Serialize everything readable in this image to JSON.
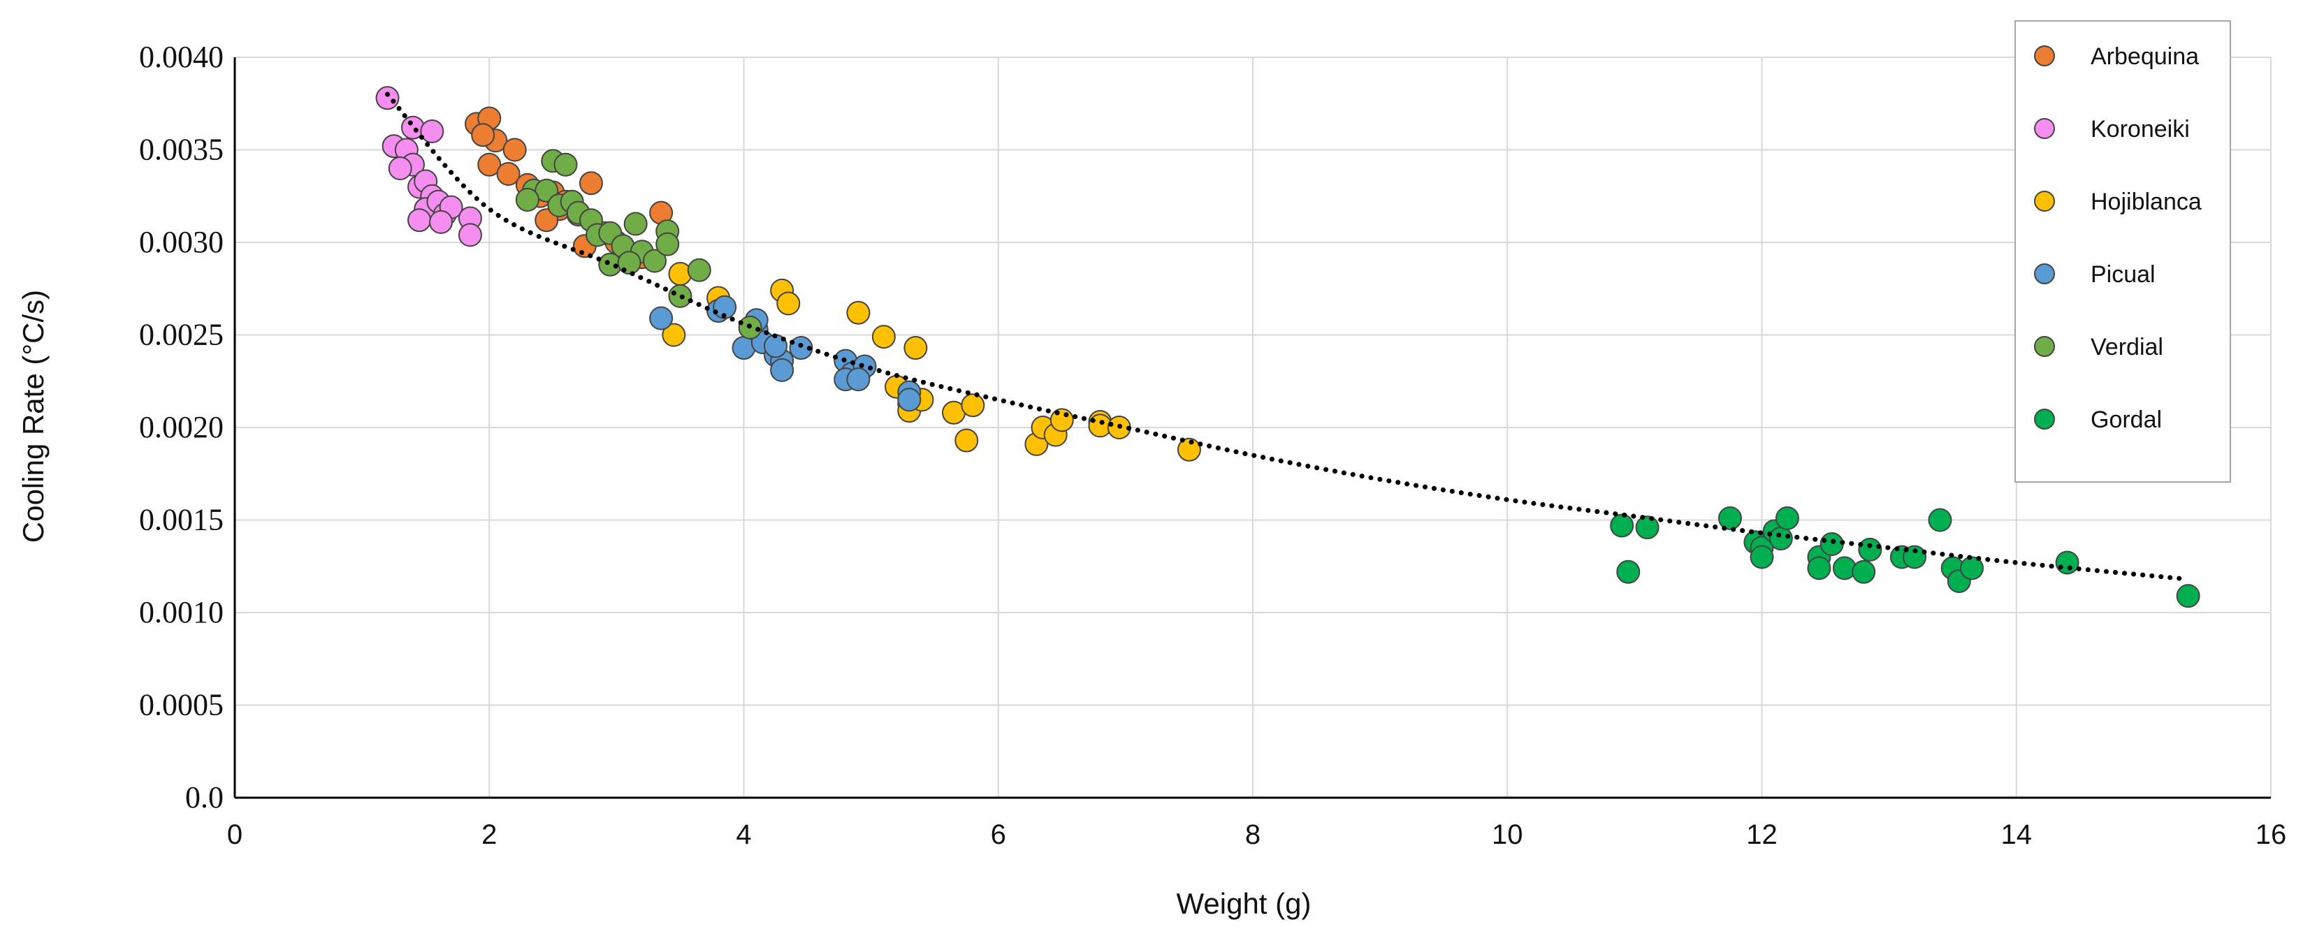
{
  "chart_data": {
    "type": "scatter",
    "title": "",
    "xlabel": "Weight (g)",
    "ylabel": "Cooling Rate (°C/s)",
    "xlim": [
      0,
      16
    ],
    "ylim": [
      0,
      0.004
    ],
    "x_ticks": [
      0,
      2,
      4,
      6,
      8,
      10,
      12,
      14,
      16
    ],
    "x_tick_labels": [
      "0",
      "2",
      "4",
      "6",
      "8",
      "10",
      "12",
      "14",
      "16"
    ],
    "y_ticks": [
      0,
      0.0005,
      0.001,
      0.0015,
      0.002,
      0.0025,
      0.003,
      0.0035,
      0.004
    ],
    "y_tick_labels": [
      "0.0",
      "0.0005",
      "0.0010",
      "0.0015",
      "0.0020",
      "0.0025",
      "0.0030",
      "0.0035",
      "0.0040"
    ],
    "grid": true,
    "legend_position": "top-right",
    "trendline": {
      "style": "dotted",
      "color": "#000000",
      "points": [
        [
          1.2,
          0.0038
        ],
        [
          2,
          0.00318
        ],
        [
          3,
          0.00287
        ],
        [
          4,
          0.00256
        ],
        [
          5,
          0.00232
        ],
        [
          6,
          0.00215
        ],
        [
          7,
          0.002
        ],
        [
          8,
          0.00185
        ],
        [
          9,
          0.00172
        ],
        [
          10,
          0.00161
        ],
        [
          11,
          0.00152
        ],
        [
          12,
          0.00143
        ],
        [
          13,
          0.00135
        ],
        [
          14,
          0.00127
        ],
        [
          15.35,
          0.00118
        ]
      ]
    },
    "series": [
      {
        "name": "Arbequina",
        "color": "#ED7D31",
        "points": [
          [
            1.9,
            0.00364
          ],
          [
            2.0,
            0.00367
          ],
          [
            2.05,
            0.00355
          ],
          [
            1.95,
            0.00358
          ],
          [
            2.0,
            0.00342
          ],
          [
            2.2,
            0.0035
          ],
          [
            2.15,
            0.00337
          ],
          [
            2.3,
            0.00331
          ],
          [
            2.4,
            0.00325
          ],
          [
            2.5,
            0.00327
          ],
          [
            2.55,
            0.00318
          ],
          [
            2.6,
            0.00322
          ],
          [
            2.7,
            0.00315
          ],
          [
            2.8,
            0.00332
          ],
          [
            2.9,
            0.00305
          ],
          [
            3.0,
            0.003
          ],
          [
            3.2,
            0.00292
          ],
          [
            3.35,
            0.00316
          ],
          [
            2.45,
            0.00312
          ],
          [
            2.75,
            0.00298
          ]
        ]
      },
      {
        "name": "Koroneiki",
        "color": "#F58EF0",
        "points": [
          [
            1.2,
            0.00378
          ],
          [
            1.4,
            0.00362
          ],
          [
            1.55,
            0.0036
          ],
          [
            1.25,
            0.00352
          ],
          [
            1.35,
            0.0035
          ],
          [
            1.4,
            0.00342
          ],
          [
            1.45,
            0.0033
          ],
          [
            1.5,
            0.00333
          ],
          [
            1.55,
            0.00325
          ],
          [
            1.5,
            0.00318
          ],
          [
            1.45,
            0.00312
          ],
          [
            1.6,
            0.00322
          ],
          [
            1.65,
            0.00315
          ],
          [
            1.7,
            0.00319
          ],
          [
            1.62,
            0.00311
          ],
          [
            1.85,
            0.00313
          ],
          [
            1.85,
            0.00304
          ],
          [
            1.3,
            0.0034
          ]
        ]
      },
      {
        "name": "Hojiblanca",
        "color": "#FFC000",
        "points": [
          [
            3.5,
            0.00283
          ],
          [
            3.45,
            0.0025
          ],
          [
            3.8,
            0.0027
          ],
          [
            4.3,
            0.00274
          ],
          [
            4.35,
            0.00267
          ],
          [
            4.9,
            0.00262
          ],
          [
            5.1,
            0.00249
          ],
          [
            5.35,
            0.00243
          ],
          [
            5.2,
            0.00222
          ],
          [
            5.3,
            0.00213
          ],
          [
            5.3,
            0.00209
          ],
          [
            5.4,
            0.00215
          ],
          [
            5.65,
            0.00208
          ],
          [
            5.75,
            0.00193
          ],
          [
            5.8,
            0.00212
          ],
          [
            6.3,
            0.00191
          ],
          [
            6.35,
            0.002
          ],
          [
            6.45,
            0.00196
          ],
          [
            6.5,
            0.00204
          ],
          [
            6.8,
            0.00203
          ],
          [
            6.8,
            0.00201
          ],
          [
            6.95,
            0.002
          ],
          [
            7.5,
            0.00188
          ]
        ]
      },
      {
        "name": "Picual",
        "color": "#5B9BD5",
        "points": [
          [
            3.35,
            0.00259
          ],
          [
            3.8,
            0.00263
          ],
          [
            3.85,
            0.00265
          ],
          [
            4.0,
            0.00243
          ],
          [
            4.1,
            0.00253
          ],
          [
            4.15,
            0.00246
          ],
          [
            4.1,
            0.00258
          ],
          [
            4.25,
            0.00239
          ],
          [
            4.3,
            0.00236
          ],
          [
            4.3,
            0.00231
          ],
          [
            4.45,
            0.00243
          ],
          [
            4.8,
            0.00236
          ],
          [
            4.85,
            0.00229
          ],
          [
            4.8,
            0.00226
          ],
          [
            4.95,
            0.00233
          ],
          [
            4.9,
            0.00226
          ],
          [
            5.3,
            0.00219
          ],
          [
            5.3,
            0.00215
          ],
          [
            4.25,
            0.00244
          ]
        ]
      },
      {
        "name": "Verdial",
        "color": "#70AD47",
        "points": [
          [
            2.5,
            0.00344
          ],
          [
            2.6,
            0.00342
          ],
          [
            2.35,
            0.00328
          ],
          [
            2.45,
            0.00328
          ],
          [
            2.3,
            0.00323
          ],
          [
            2.55,
            0.0032
          ],
          [
            2.65,
            0.00322
          ],
          [
            2.7,
            0.00316
          ],
          [
            2.8,
            0.00312
          ],
          [
            2.85,
            0.00304
          ],
          [
            2.95,
            0.00305
          ],
          [
            3.05,
            0.00298
          ],
          [
            3.15,
            0.0031
          ],
          [
            3.2,
            0.00295
          ],
          [
            3.3,
            0.0029
          ],
          [
            3.4,
            0.00306
          ],
          [
            3.4,
            0.00299
          ],
          [
            2.95,
            0.00288
          ],
          [
            3.1,
            0.00289
          ],
          [
            3.65,
            0.00285
          ],
          [
            3.5,
            0.00271
          ],
          [
            4.05,
            0.00254
          ]
        ]
      },
      {
        "name": "Gordal",
        "color": "#00B050",
        "points": [
          [
            10.9,
            0.00147
          ],
          [
            10.95,
            0.00122
          ],
          [
            11.1,
            0.00146
          ],
          [
            11.75,
            0.00151
          ],
          [
            11.95,
            0.00138
          ],
          [
            12.0,
            0.00135
          ],
          [
            12.0,
            0.0013
          ],
          [
            12.1,
            0.00144
          ],
          [
            12.15,
            0.0014
          ],
          [
            12.2,
            0.00151
          ],
          [
            12.45,
            0.0013
          ],
          [
            12.45,
            0.00124
          ],
          [
            12.55,
            0.00137
          ],
          [
            12.65,
            0.00124
          ],
          [
            12.8,
            0.00122
          ],
          [
            12.85,
            0.00134
          ],
          [
            13.1,
            0.0013
          ],
          [
            13.2,
            0.0013
          ],
          [
            13.4,
            0.0015
          ],
          [
            13.5,
            0.00124
          ],
          [
            13.55,
            0.00117
          ],
          [
            13.65,
            0.00124
          ],
          [
            14.4,
            0.00127
          ],
          [
            15.35,
            0.00109
          ]
        ]
      }
    ]
  }
}
